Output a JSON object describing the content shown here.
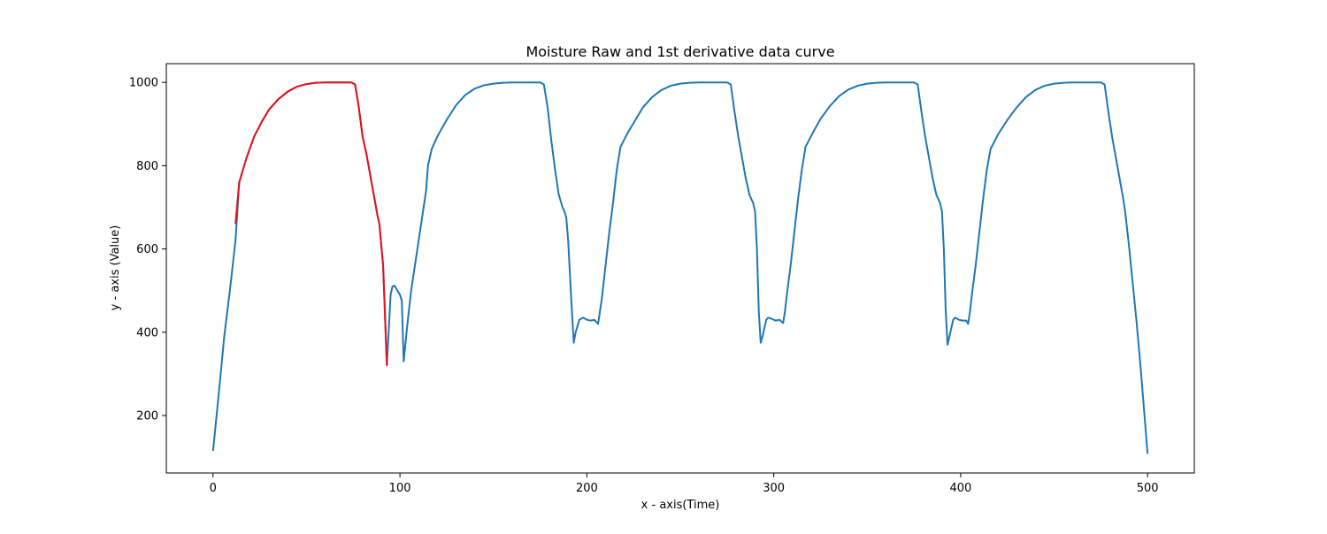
{
  "chart_data": {
    "type": "line",
    "title": "Moisture Raw and 1st derivative data curve",
    "xlabel": "x - axis(Time)",
    "ylabel": "y - axis (Value)",
    "xlim": [
      -25,
      525
    ],
    "ylim": [
      62,
      1045
    ],
    "xticks": [
      0,
      100,
      200,
      300,
      400,
      500
    ],
    "yticks": [
      200,
      400,
      600,
      800,
      1000
    ],
    "grid": false,
    "legend": "none",
    "series": [
      {
        "color": "#1f77b4",
        "points": [
          [
            0,
            115
          ],
          [
            3,
            250
          ],
          [
            6,
            390
          ],
          [
            9,
            500
          ],
          [
            12,
            620
          ],
          [
            14,
            760
          ],
          [
            18,
            820
          ],
          [
            22,
            870
          ],
          [
            26,
            905
          ],
          [
            30,
            935
          ],
          [
            35,
            960
          ],
          [
            40,
            978
          ],
          [
            45,
            990
          ],
          [
            50,
            996
          ],
          [
            55,
            999
          ],
          [
            60,
            1000
          ],
          [
            65,
            1000
          ],
          [
            70,
            1000
          ],
          [
            74,
            1000
          ],
          [
            76,
            995
          ],
          [
            78,
            940
          ],
          [
            80,
            870
          ],
          [
            82,
            830
          ],
          [
            84,
            780
          ],
          [
            86,
            730
          ],
          [
            88,
            680
          ],
          [
            89,
            660
          ],
          [
            91,
            560
          ],
          [
            93,
            320
          ],
          [
            95,
            490
          ],
          [
            96,
            510
          ],
          [
            97,
            512
          ],
          [
            98,
            505
          ],
          [
            100,
            490
          ],
          [
            101,
            475
          ],
          [
            102,
            330
          ],
          [
            104,
            420
          ],
          [
            106,
            500
          ],
          [
            108,
            560
          ],
          [
            110,
            620
          ],
          [
            112,
            680
          ],
          [
            114,
            740
          ],
          [
            115,
            800
          ],
          [
            117,
            840
          ],
          [
            120,
            870
          ],
          [
            125,
            910
          ],
          [
            130,
            945
          ],
          [
            135,
            970
          ],
          [
            140,
            985
          ],
          [
            145,
            993
          ],
          [
            150,
            997
          ],
          [
            155,
            999
          ],
          [
            160,
            1000
          ],
          [
            165,
            1000
          ],
          [
            170,
            1000
          ],
          [
            175,
            1000
          ],
          [
            177,
            995
          ],
          [
            179,
            940
          ],
          [
            181,
            860
          ],
          [
            183,
            790
          ],
          [
            185,
            730
          ],
          [
            187,
            700
          ],
          [
            188,
            690
          ],
          [
            189,
            675
          ],
          [
            190,
            620
          ],
          [
            192,
            450
          ],
          [
            193,
            375
          ],
          [
            194,
            400
          ],
          [
            196,
            430
          ],
          [
            198,
            435
          ],
          [
            200,
            430
          ],
          [
            202,
            428
          ],
          [
            204,
            430
          ],
          [
            206,
            420
          ],
          [
            207,
            450
          ],
          [
            208,
            480
          ],
          [
            210,
            560
          ],
          [
            212,
            640
          ],
          [
            214,
            710
          ],
          [
            216,
            790
          ],
          [
            218,
            845
          ],
          [
            222,
            880
          ],
          [
            226,
            910
          ],
          [
            230,
            940
          ],
          [
            235,
            965
          ],
          [
            240,
            982
          ],
          [
            245,
            992
          ],
          [
            250,
            997
          ],
          [
            255,
            999
          ],
          [
            260,
            1000
          ],
          [
            265,
            1000
          ],
          [
            270,
            1000
          ],
          [
            275,
            1000
          ],
          [
            277,
            995
          ],
          [
            279,
            930
          ],
          [
            281,
            870
          ],
          [
            283,
            820
          ],
          [
            285,
            770
          ],
          [
            287,
            730
          ],
          [
            289,
            710
          ],
          [
            290,
            690
          ],
          [
            291,
            600
          ],
          [
            292,
            450
          ],
          [
            293,
            375
          ],
          [
            294,
            390
          ],
          [
            296,
            430
          ],
          [
            297,
            435
          ],
          [
            299,
            432
          ],
          [
            301,
            428
          ],
          [
            303,
            430
          ],
          [
            305,
            422
          ],
          [
            306,
            450
          ],
          [
            307,
            490
          ],
          [
            309,
            560
          ],
          [
            311,
            640
          ],
          [
            313,
            720
          ],
          [
            315,
            790
          ],
          [
            317,
            845
          ],
          [
            321,
            880
          ],
          [
            325,
            912
          ],
          [
            330,
            943
          ],
          [
            335,
            967
          ],
          [
            340,
            983
          ],
          [
            345,
            992
          ],
          [
            350,
            997
          ],
          [
            355,
            999
          ],
          [
            360,
            1000
          ],
          [
            365,
            1000
          ],
          [
            370,
            1000
          ],
          [
            375,
            1000
          ],
          [
            377,
            995
          ],
          [
            379,
            930
          ],
          [
            381,
            870
          ],
          [
            383,
            820
          ],
          [
            385,
            770
          ],
          [
            387,
            730
          ],
          [
            389,
            710
          ],
          [
            390,
            690
          ],
          [
            391,
            600
          ],
          [
            392,
            450
          ],
          [
            393,
            370
          ],
          [
            394,
            390
          ],
          [
            396,
            430
          ],
          [
            397,
            435
          ],
          [
            399,
            430
          ],
          [
            401,
            428
          ],
          [
            403,
            428
          ],
          [
            404,
            420
          ],
          [
            405,
            450
          ],
          [
            406,
            490
          ],
          [
            408,
            560
          ],
          [
            410,
            640
          ],
          [
            412,
            720
          ],
          [
            414,
            790
          ],
          [
            416,
            840
          ],
          [
            420,
            875
          ],
          [
            425,
            910
          ],
          [
            430,
            940
          ],
          [
            435,
            965
          ],
          [
            440,
            982
          ],
          [
            445,
            992
          ],
          [
            450,
            997
          ],
          [
            455,
            999
          ],
          [
            460,
            1000
          ],
          [
            465,
            1000
          ],
          [
            470,
            1000
          ],
          [
            475,
            1000
          ],
          [
            477,
            995
          ],
          [
            479,
            930
          ],
          [
            481,
            870
          ],
          [
            483,
            820
          ],
          [
            485,
            770
          ],
          [
            487,
            720
          ],
          [
            488,
            690
          ],
          [
            490,
            610
          ],
          [
            492,
            520
          ],
          [
            494,
            430
          ],
          [
            496,
            330
          ],
          [
            498,
            220
          ],
          [
            500,
            108
          ]
        ]
      },
      {
        "color": "#e8101a",
        "points": [
          [
            12,
            660
          ],
          [
            14,
            760
          ],
          [
            18,
            820
          ],
          [
            22,
            870
          ],
          [
            26,
            905
          ],
          [
            30,
            935
          ],
          [
            35,
            960
          ],
          [
            40,
            978
          ],
          [
            45,
            990
          ],
          [
            50,
            996
          ],
          [
            55,
            999
          ],
          [
            60,
            1000
          ],
          [
            65,
            1000
          ],
          [
            70,
            1000
          ],
          [
            74,
            1000
          ],
          [
            76,
            995
          ],
          [
            78,
            940
          ],
          [
            80,
            870
          ],
          [
            82,
            830
          ],
          [
            84,
            780
          ],
          [
            86,
            730
          ],
          [
            88,
            680
          ],
          [
            89,
            660
          ],
          [
            91,
            560
          ],
          [
            93,
            320
          ]
        ]
      }
    ]
  }
}
